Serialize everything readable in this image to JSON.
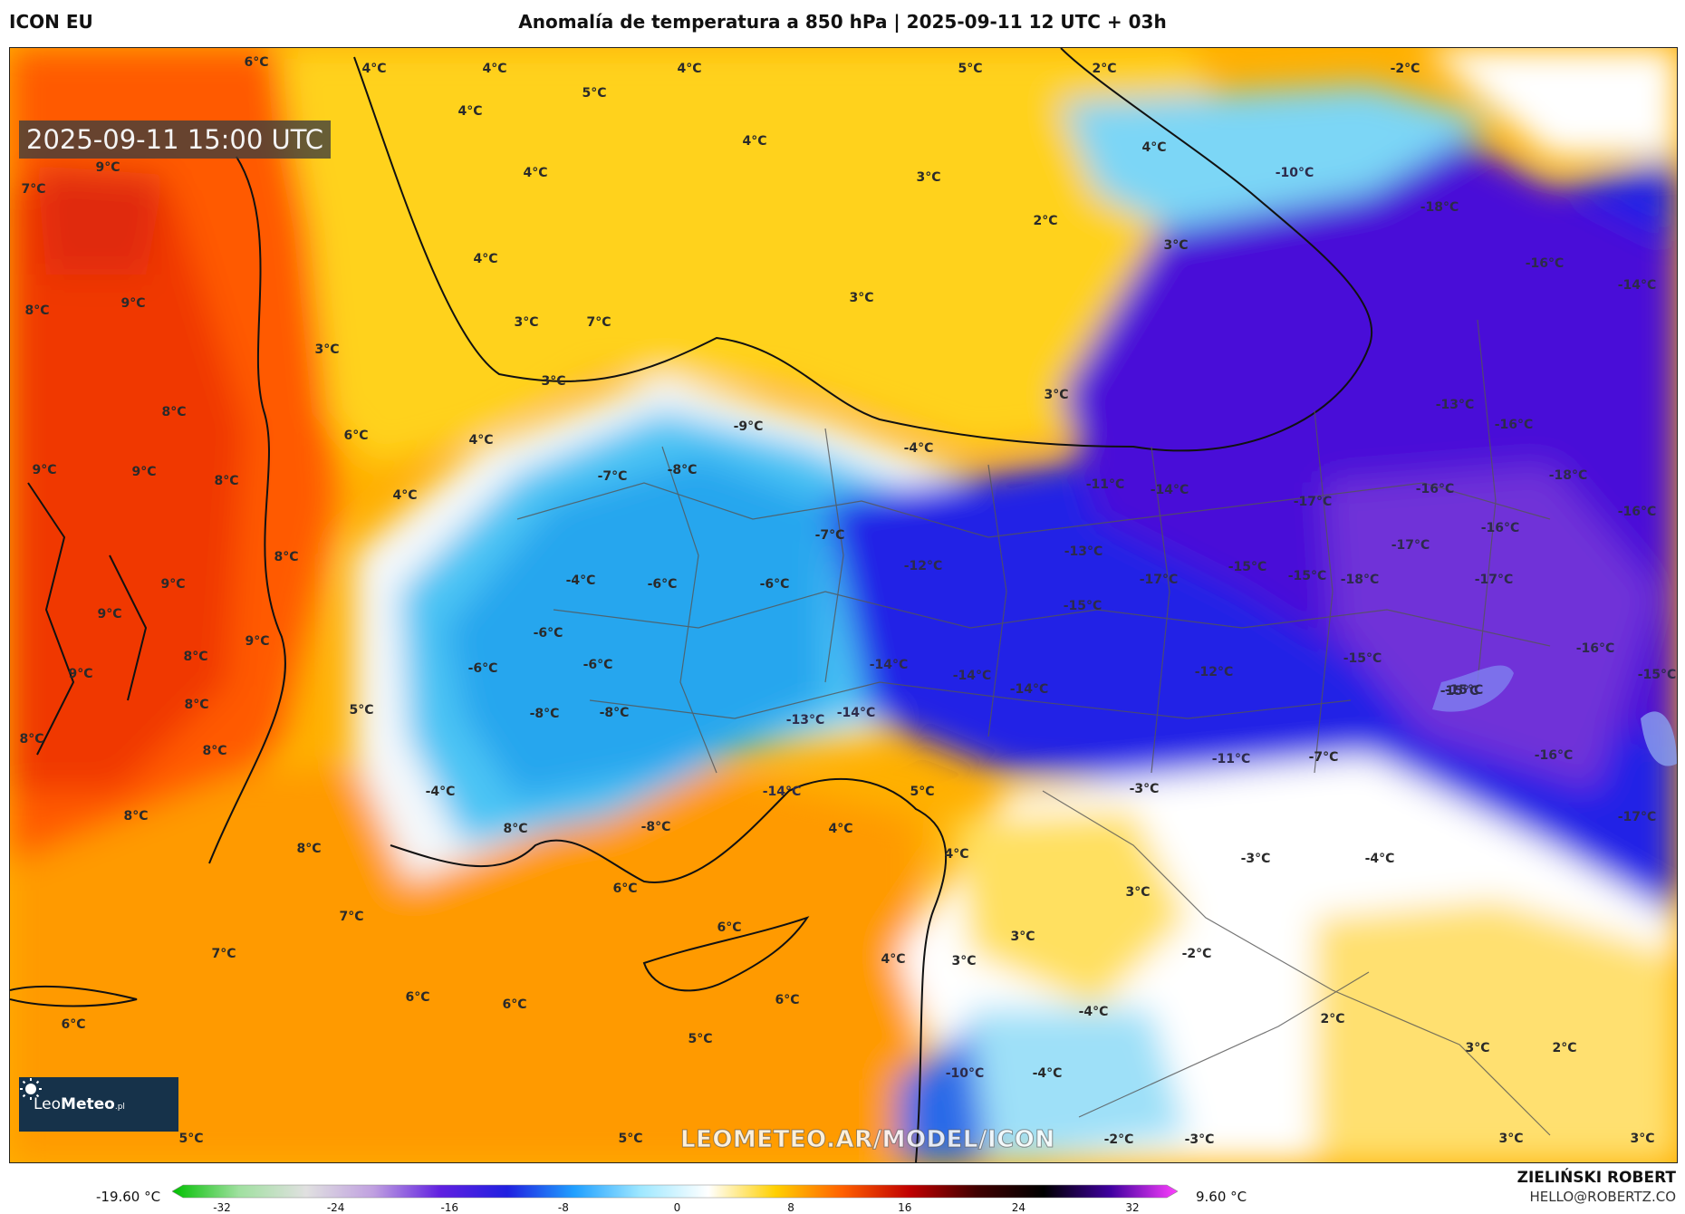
{
  "header": {
    "model": "ICON EU",
    "title": "Anomalía de temperatura a 850 hPa | 2025-09-11 12 UTC + 03h"
  },
  "map": {
    "timestamp": "2025-09-11 15:00 UTC",
    "watermark": "LEOMETEO.AR/MODEL/ICON",
    "logo": {
      "prefix": "Leo",
      "bold": "Meteo",
      "suffix": ".pl"
    },
    "labels": [
      {
        "t": "6°C",
        "id": "l1"
      },
      {
        "t": "4°C",
        "id": "l2"
      },
      {
        "t": "4°C",
        "id": "l3"
      },
      {
        "t": "5°C",
        "id": "l4"
      },
      {
        "t": "4°C",
        "id": "l5"
      },
      {
        "t": "2°C",
        "id": "l6"
      },
      {
        "t": "-2°C",
        "id": "l7"
      },
      {
        "t": "4°C",
        "id": "l8"
      },
      {
        "t": "5°C",
        "id": "l9"
      },
      {
        "t": "4°C",
        "id": "l10"
      },
      {
        "t": "9°C",
        "id": "l11"
      },
      {
        "t": "4°C",
        "id": "l12"
      },
      {
        "t": "3°C",
        "id": "l13"
      },
      {
        "t": "4°C",
        "id": "l14"
      },
      {
        "t": "-10°C",
        "id": "l15"
      },
      {
        "t": "7°C",
        "id": "l16"
      },
      {
        "t": "2°C",
        "id": "l17"
      },
      {
        "t": "3°C",
        "id": "l18"
      },
      {
        "t": "-18°C",
        "id": "l19"
      },
      {
        "t": "4°C",
        "id": "l20"
      },
      {
        "t": "-16°C",
        "id": "l21"
      },
      {
        "t": "-14°C",
        "id": "l22"
      },
      {
        "t": "8°C",
        "id": "l23"
      },
      {
        "t": "9°C",
        "id": "l24"
      },
      {
        "t": "3°C",
        "id": "l25"
      },
      {
        "t": "3°C",
        "id": "l26"
      },
      {
        "t": "7°C",
        "id": "l27"
      },
      {
        "t": "3°C",
        "id": "l28"
      },
      {
        "t": "3°C",
        "id": "l29"
      },
      {
        "t": "3°C",
        "id": "l30"
      },
      {
        "t": "8°C",
        "id": "l31"
      },
      {
        "t": "-13°C",
        "id": "l32"
      },
      {
        "t": "6°C",
        "id": "l33"
      },
      {
        "t": "4°C",
        "id": "l34"
      },
      {
        "t": "-9°C",
        "id": "l35"
      },
      {
        "t": "-4°C",
        "id": "l36"
      },
      {
        "t": "-16°C",
        "id": "l37"
      },
      {
        "t": "9°C",
        "id": "l38"
      },
      {
        "t": "9°C",
        "id": "l39"
      },
      {
        "t": "8°C",
        "id": "l40"
      },
      {
        "t": "-7°C",
        "id": "l41"
      },
      {
        "t": "-8°C",
        "id": "l42"
      },
      {
        "t": "-11°C",
        "id": "l43"
      },
      {
        "t": "-14°C",
        "id": "l44"
      },
      {
        "t": "-17°C",
        "id": "l45"
      },
      {
        "t": "-16°C",
        "id": "l46"
      },
      {
        "t": "-18°C",
        "id": "l47"
      },
      {
        "t": "4°C",
        "id": "l48"
      },
      {
        "t": "-16°C",
        "id": "l49"
      },
      {
        "t": "-7°C",
        "id": "l50"
      },
      {
        "t": "-16°C",
        "id": "l51"
      },
      {
        "t": "8°C",
        "id": "l52"
      },
      {
        "t": "-13°C",
        "id": "l53"
      },
      {
        "t": "-17°C",
        "id": "l54"
      },
      {
        "t": "-12°C",
        "id": "l55"
      },
      {
        "t": "9°C",
        "id": "l56"
      },
      {
        "t": "-4°C",
        "id": "l57"
      },
      {
        "t": "-6°C",
        "id": "l58"
      },
      {
        "t": "-6°C",
        "id": "l59"
      },
      {
        "t": "-17°C",
        "id": "l60"
      },
      {
        "t": "-15°C",
        "id": "l61"
      },
      {
        "t": "-15°C",
        "id": "l62"
      },
      {
        "t": "-18°C",
        "id": "l63"
      },
      {
        "t": "-17°C",
        "id": "l64"
      },
      {
        "t": "9°C",
        "id": "l65"
      },
      {
        "t": "-15°C",
        "id": "l66"
      },
      {
        "t": "9°C",
        "id": "l67"
      },
      {
        "t": "-6°C",
        "id": "l68"
      },
      {
        "t": "8°C",
        "id": "l69"
      },
      {
        "t": "9°C",
        "id": "l70"
      },
      {
        "t": "-6°C",
        "id": "l71"
      },
      {
        "t": "-6°C",
        "id": "l72"
      },
      {
        "t": "-14°C",
        "id": "l73"
      },
      {
        "t": "-15°C",
        "id": "l74"
      },
      {
        "t": "-16°C",
        "id": "l75"
      },
      {
        "t": "-14°C",
        "id": "l76"
      },
      {
        "t": "-12°C",
        "id": "l77"
      },
      {
        "t": "-14°C",
        "id": "l78"
      },
      {
        "t": "-15°C",
        "id": "l79"
      },
      {
        "t": "-15°C",
        "id": "l80"
      },
      {
        "t": "8°C",
        "id": "l81"
      },
      {
        "t": "5°C",
        "id": "l82"
      },
      {
        "t": "-8°C",
        "id": "l83"
      },
      {
        "t": "-8°C",
        "id": "l84"
      },
      {
        "t": "-13°C",
        "id": "l85"
      },
      {
        "t": "-14°C",
        "id": "l86"
      },
      {
        "t": "-15°C",
        "id": "l87"
      },
      {
        "t": "8°C",
        "id": "l88"
      },
      {
        "t": "-11°C",
        "id": "l89"
      },
      {
        "t": "-7°C",
        "id": "l90"
      },
      {
        "t": "-16°C",
        "id": "l91"
      },
      {
        "t": "8°C",
        "id": "l92"
      },
      {
        "t": "-3°C",
        "id": "l93"
      },
      {
        "t": "-14°C",
        "id": "l94"
      },
      {
        "t": "5°C",
        "id": "l95"
      },
      {
        "t": "-4°C",
        "id": "l96"
      },
      {
        "t": "8°C",
        "id": "l97"
      },
      {
        "t": "-8°C",
        "id": "l98"
      },
      {
        "t": "4°C",
        "id": "l99"
      },
      {
        "t": "8°C",
        "id": "l100"
      },
      {
        "t": "-17°C",
        "id": "l101"
      },
      {
        "t": "8°C",
        "id": "l102"
      },
      {
        "t": "4°C",
        "id": "l103"
      },
      {
        "t": "-3°C",
        "id": "l104"
      },
      {
        "t": "-4°C",
        "id": "l105"
      },
      {
        "t": "6°C",
        "id": "l106"
      },
      {
        "t": "3°C",
        "id": "l107"
      },
      {
        "t": "7°C",
        "id": "l108"
      },
      {
        "t": "6°C",
        "id": "l109"
      },
      {
        "t": "3°C",
        "id": "l110"
      },
      {
        "t": "7°C",
        "id": "l111"
      },
      {
        "t": "4°C",
        "id": "l112"
      },
      {
        "t": "3°C",
        "id": "l113"
      },
      {
        "t": "-2°C",
        "id": "l114"
      },
      {
        "t": "6°C",
        "id": "l115"
      },
      {
        "t": "6°C",
        "id": "l116"
      },
      {
        "t": "6°C",
        "id": "l117"
      },
      {
        "t": "6°C",
        "id": "l118"
      },
      {
        "t": "-4°C",
        "id": "l119"
      },
      {
        "t": "2°C",
        "id": "l120"
      },
      {
        "t": "5°C",
        "id": "l121"
      },
      {
        "t": "3°C",
        "id": "l122"
      },
      {
        "t": "2°C",
        "id": "l123"
      },
      {
        "t": "-10°C",
        "id": "l124"
      },
      {
        "t": "-4°C",
        "id": "l125"
      },
      {
        "t": "5°C",
        "id": "l126"
      },
      {
        "t": "5°C",
        "id": "l127"
      },
      {
        "t": "-2°C",
        "id": "l128"
      },
      {
        "t": "-3°C",
        "id": "l129"
      },
      {
        "t": "3°C",
        "id": "l130"
      },
      {
        "t": "3°C",
        "id": "l131"
      }
    ]
  },
  "colorbar": {
    "min_label": "-19.60 °C",
    "max_label": "9.60 °C",
    "ticks": [
      "-32",
      "-24",
      "-16",
      "-8",
      "0",
      "8",
      "16",
      "24",
      "32"
    ],
    "stops": [
      "#00c000",
      "#a0e0a0",
      "#e0e0e0",
      "#c0a0e0",
      "#6020e0",
      "#2020e0",
      "#20a0ff",
      "#a0e8ff",
      "#ffffff",
      "#ffd000",
      "#ff6000",
      "#c00000",
      "#400000",
      "#000000",
      "#4000a0",
      "#ff40ff"
    ]
  },
  "author": {
    "name": "ZIELIŃSKI ROBERT",
    "email": "HELLO@ROBERTZ.CO"
  }
}
